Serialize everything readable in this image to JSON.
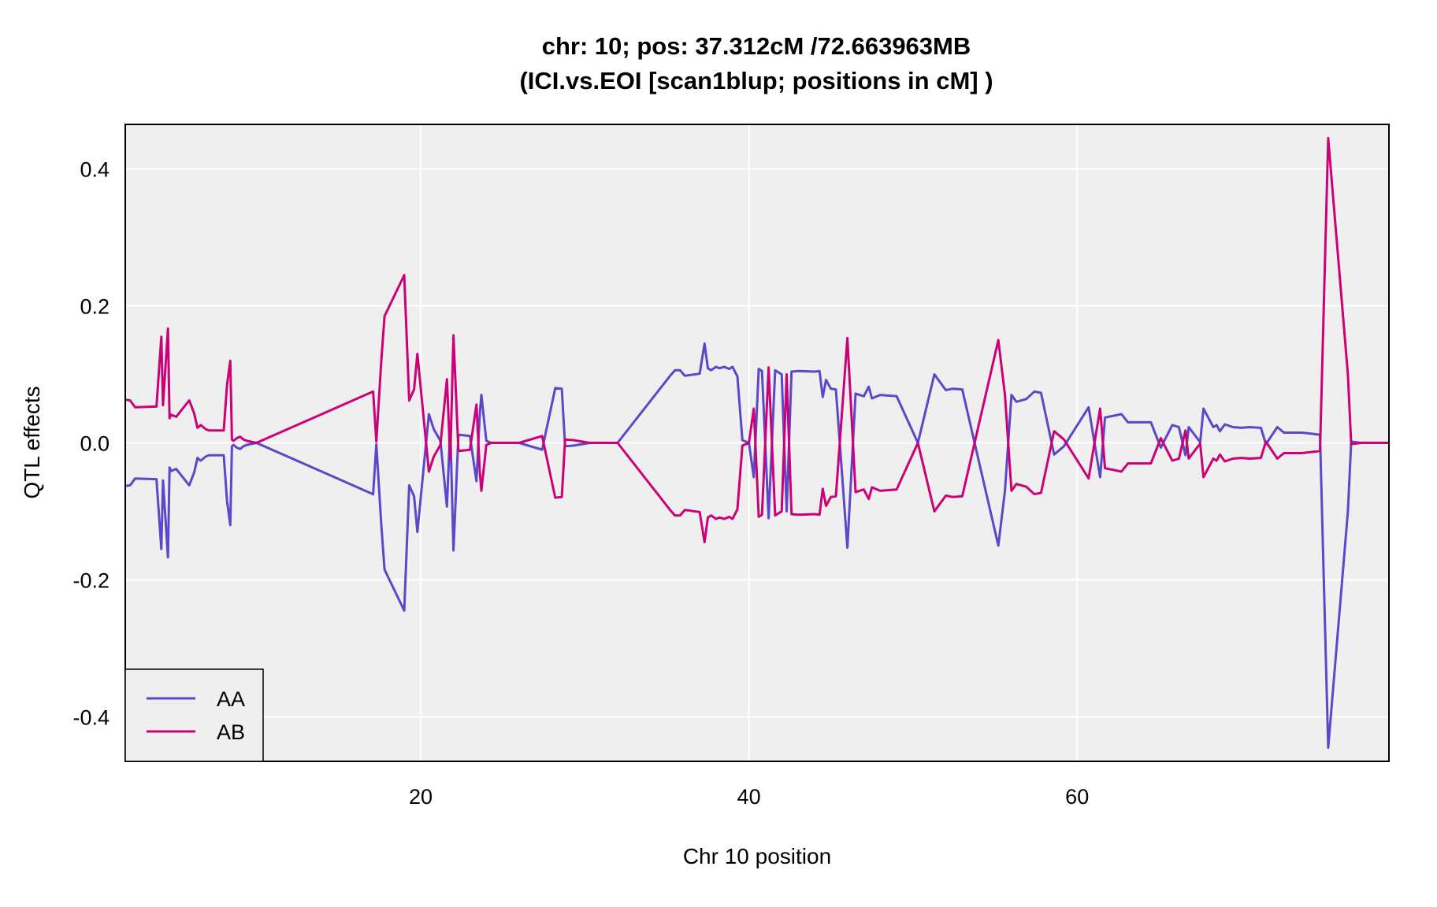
{
  "chart_data": {
    "type": "line",
    "title": "chr: 10; pos: 37.312cM /72.663963MB",
    "subtitle": "(ICI.vs.EOI [scan1blup; positions in cM] )",
    "xlabel": "Chr 10 position",
    "ylabel": "QTL effects",
    "xlim": [
      2.0,
      79.0
    ],
    "ylim": [
      -0.465,
      0.465
    ],
    "x_ticks": [
      20,
      40,
      60
    ],
    "x_tick_labels": [
      "20",
      "40",
      "60"
    ],
    "y_ticks": [
      -0.4,
      -0.2,
      0.0,
      0.2,
      0.4
    ],
    "y_tick_labels": [
      "-0.4",
      "-0.2",
      "0.0",
      "0.2",
      "0.4"
    ],
    "grid": true,
    "legend_position": "bottom-left",
    "colors": {
      "AA": "#5a48c8",
      "AB": "#cc0077"
    },
    "x": [
      2.0,
      2.3,
      2.6,
      3.9,
      4.2,
      4.3,
      4.6,
      4.7,
      4.8,
      5.1,
      5.9,
      6.2,
      6.4,
      6.6,
      6.9,
      7.1,
      8.0,
      8.2,
      8.4,
      8.5,
      8.6,
      8.8,
      9.0,
      9.2,
      9.4,
      10.0,
      17.1,
      17.3,
      17.6,
      17.8,
      19.0,
      19.3,
      19.6,
      19.8,
      20.5,
      20.8,
      21.2,
      21.6,
      21.8,
      22.0,
      22.3,
      23.0,
      23.4,
      23.6,
      23.7,
      24.0,
      24.3,
      26.0,
      27.4,
      28.2,
      28.6,
      28.8,
      29.3,
      30.3,
      32.0,
      35.2,
      35.5,
      35.8,
      36.1,
      37.0,
      37.3,
      37.5,
      37.7,
      38.0,
      38.2,
      38.5,
      38.8,
      39.0,
      39.3,
      39.6,
      40.0,
      40.3,
      40.6,
      40.8,
      41.2,
      41.6,
      42.0,
      42.3,
      42.6,
      43.0,
      44.0,
      44.3,
      44.5,
      44.7,
      45.0,
      45.3,
      46.0,
      46.5,
      47.0,
      47.3,
      47.5,
      48.0,
      49.0,
      50.3,
      51.3,
      52.0,
      52.4,
      53.0,
      55.2,
      55.6,
      56.0,
      56.3,
      56.9,
      57.4,
      57.8,
      58.6,
      59.2,
      60.7,
      61.4,
      61.7,
      62.7,
      63.1,
      64.5,
      65.1,
      65.8,
      66.2,
      66.6,
      66.8,
      67.5,
      67.7,
      68.3,
      68.5,
      68.7,
      69.0,
      69.5,
      70.0,
      70.5,
      71.2,
      71.5,
      72.2,
      72.6,
      73.7,
      74.8,
      75.3,
      76.5,
      76.7,
      77.3,
      79.0
    ],
    "series": [
      {
        "name": "AA",
        "values": [
          -0.063,
          -0.062,
          -0.052,
          -0.053,
          -0.155,
          -0.055,
          -0.167,
          -0.036,
          -0.041,
          -0.038,
          -0.062,
          -0.043,
          -0.022,
          -0.026,
          -0.02,
          -0.018,
          -0.018,
          -0.085,
          -0.12,
          -0.005,
          -0.003,
          -0.007,
          -0.009,
          -0.005,
          -0.003,
          0.0,
          -0.075,
          -0.002,
          -0.12,
          -0.185,
          -0.245,
          -0.062,
          -0.078,
          -0.13,
          0.042,
          0.02,
          0.003,
          -0.093,
          0.024,
          -0.157,
          0.012,
          0.01,
          -0.056,
          0.042,
          0.07,
          0.003,
          0.0,
          0.0,
          -0.01,
          0.08,
          0.079,
          -0.005,
          -0.004,
          0.0,
          0.0,
          0.098,
          0.106,
          0.106,
          0.098,
          0.101,
          0.145,
          0.109,
          0.106,
          0.111,
          0.109,
          0.111,
          0.108,
          0.111,
          0.097,
          0.004,
          0.0,
          -0.05,
          0.108,
          0.105,
          -0.11,
          0.106,
          0.1,
          -0.1,
          0.104,
          0.105,
          0.104,
          0.105,
          0.067,
          0.092,
          0.079,
          0.078,
          -0.153,
          0.072,
          0.068,
          0.082,
          0.065,
          0.07,
          0.068,
          0.0,
          0.1,
          0.077,
          0.079,
          0.078,
          -0.15,
          -0.07,
          0.07,
          0.06,
          0.064,
          0.075,
          0.073,
          -0.017,
          -0.005,
          0.052,
          -0.05,
          0.037,
          0.042,
          0.03,
          0.03,
          -0.007,
          0.026,
          0.023,
          -0.018,
          0.023,
          0.001,
          0.05,
          0.023,
          0.026,
          0.017,
          0.027,
          0.023,
          0.022,
          0.023,
          0.022,
          -0.002,
          0.023,
          0.015,
          0.015,
          0.012,
          -0.445,
          -0.1,
          0.002,
          0.0,
          0.0
        ],
        "count": 138
      },
      {
        "name": "AB",
        "values": [
          0.063,
          0.062,
          0.052,
          0.053,
          0.155,
          0.055,
          0.167,
          0.036,
          0.041,
          0.038,
          0.062,
          0.043,
          0.022,
          0.026,
          0.02,
          0.018,
          0.018,
          0.085,
          0.12,
          0.005,
          0.003,
          0.007,
          0.009,
          0.005,
          0.003,
          0.0,
          0.075,
          0.002,
          0.12,
          0.185,
          0.245,
          0.062,
          0.078,
          0.13,
          -0.042,
          -0.02,
          -0.003,
          0.093,
          -0.024,
          0.157,
          -0.012,
          -0.01,
          0.056,
          -0.042,
          -0.07,
          -0.003,
          0.0,
          0.0,
          0.01,
          -0.08,
          -0.079,
          0.005,
          0.004,
          0.0,
          0.0,
          -0.098,
          -0.106,
          -0.106,
          -0.098,
          -0.101,
          -0.145,
          -0.109,
          -0.106,
          -0.111,
          -0.109,
          -0.111,
          -0.108,
          -0.111,
          -0.097,
          -0.004,
          0.0,
          0.05,
          -0.108,
          -0.105,
          0.11,
          -0.106,
          -0.1,
          0.1,
          -0.104,
          -0.105,
          -0.104,
          -0.105,
          -0.067,
          -0.092,
          -0.079,
          -0.078,
          0.153,
          -0.072,
          -0.068,
          -0.082,
          -0.065,
          -0.07,
          -0.068,
          0.0,
          -0.1,
          -0.077,
          -0.079,
          -0.078,
          0.15,
          0.07,
          -0.07,
          -0.06,
          -0.064,
          -0.075,
          -0.073,
          0.017,
          0.005,
          -0.052,
          0.05,
          -0.037,
          -0.042,
          -0.03,
          -0.03,
          0.007,
          -0.026,
          -0.023,
          0.018,
          -0.023,
          -0.001,
          -0.05,
          -0.023,
          -0.026,
          -0.017,
          -0.027,
          -0.023,
          -0.022,
          -0.023,
          -0.022,
          0.002,
          -0.023,
          -0.015,
          -0.015,
          -0.012,
          0.445,
          0.1,
          -0.002,
          0.0,
          0.0
        ],
        "count": 138
      }
    ]
  }
}
